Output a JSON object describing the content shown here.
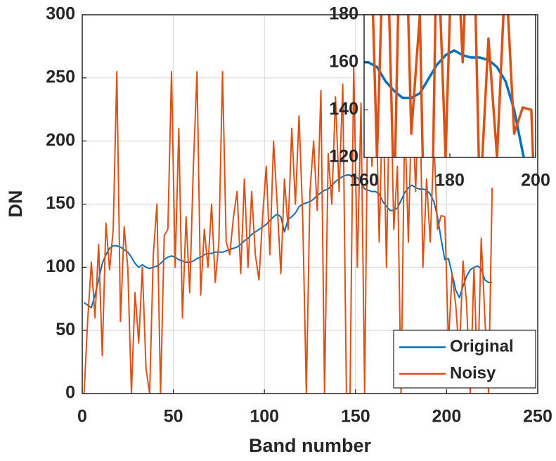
{
  "chart_data": [
    {
      "type": "line",
      "xlabel": "Band number",
      "ylabel": "DN",
      "x": [
        1,
        3,
        5,
        7,
        9,
        11,
        13,
        15,
        17,
        19,
        21,
        23,
        25,
        27,
        29,
        31,
        33,
        35,
        37,
        39,
        41,
        43,
        45,
        47,
        49,
        51,
        53,
        55,
        57,
        59,
        61,
        63,
        65,
        67,
        69,
        71,
        73,
        75,
        77,
        79,
        81,
        83,
        85,
        87,
        89,
        91,
        93,
        95,
        97,
        99,
        101,
        103,
        105,
        107,
        109,
        111,
        113,
        115,
        117,
        119,
        121,
        123,
        125,
        127,
        129,
        131,
        133,
        135,
        137,
        139,
        141,
        143,
        145,
        147,
        149,
        151,
        153,
        155,
        157,
        159,
        161,
        163,
        165,
        167,
        169,
        171,
        173,
        175,
        177,
        179,
        181,
        183,
        185,
        187,
        189,
        191,
        193,
        195,
        197,
        199,
        201,
        203,
        205,
        207,
        209,
        211,
        213,
        215,
        217,
        219,
        221,
        223,
        225
      ],
      "series": [
        {
          "name": "Original",
          "color": "#0072BD",
          "values": [
            72,
            70,
            68,
            78,
            90,
            103,
            110,
            115,
            117,
            117,
            116,
            114,
            112,
            108,
            103,
            100,
            102,
            100,
            99,
            100,
            101,
            103,
            106,
            108,
            109,
            108,
            106,
            105,
            104,
            104,
            105,
            107,
            108,
            110,
            111,
            111,
            112,
            112,
            112,
            113,
            114,
            115,
            116,
            118,
            121,
            123,
            126,
            128,
            130,
            132,
            134,
            137,
            140,
            142,
            140,
            128,
            138,
            140,
            143,
            148,
            150,
            151,
            152,
            154,
            157,
            159,
            161,
            162,
            165,
            168,
            170,
            172,
            173,
            173,
            172,
            171,
            167,
            162,
            161,
            160,
            160,
            158,
            152,
            148,
            145,
            145,
            147,
            153,
            159,
            163,
            165,
            163,
            162,
            162,
            161,
            158,
            152,
            140,
            122,
            106,
            107,
            95,
            82,
            76,
            85,
            93,
            98,
            100,
            101,
            99,
            90,
            88,
            88
          ]
        },
        {
          "name": "Noisy",
          "color": "#D95319",
          "values": [
            0,
            58,
            104,
            60,
            118,
            30,
            135,
            98,
            130,
            255,
            57,
            132,
            100,
            0,
            80,
            40,
            100,
            20,
            0,
            110,
            150,
            0,
            125,
            130,
            255,
            100,
            210,
            60,
            140,
            80,
            180,
            255,
            78,
            130,
            100,
            150,
            88,
            120,
            255,
            120,
            110,
            140,
            160,
            95,
            170,
            100,
            160,
            110,
            90,
            140,
            180,
            110,
            200,
            150,
            95,
            170,
            130,
            210,
            150,
            220,
            140,
            0,
            160,
            200,
            145,
            240,
            0,
            190,
            150,
            235,
            160,
            245,
            0,
            0,
            260,
            100,
            230,
            0,
            270,
            180,
            250,
            120,
            240,
            100,
            270,
            130,
            180,
            0,
            220,
            120,
            240,
            160,
            260,
            100,
            170,
            120,
            200,
            130,
            141,
            140,
            40,
            95,
            70,
            30,
            105,
            70,
            0,
            100,
            10,
            123,
            60,
            0,
            163
          ]
        }
      ],
      "xlim": [
        0,
        250
      ],
      "xticks": [
        0,
        50,
        100,
        150,
        200,
        250
      ],
      "ylim": [
        0,
        300
      ],
      "yticks": [
        0,
        50,
        100,
        150,
        200,
        250,
        300
      ],
      "grid": true,
      "legend": "southeast"
    },
    {
      "type": "inset",
      "xlim": [
        160,
        200
      ],
      "xticks": [
        160,
        180,
        200
      ],
      "ylim": [
        120,
        180
      ],
      "yticks": [
        120,
        140,
        160,
        180
      ],
      "grid": false
    }
  ]
}
